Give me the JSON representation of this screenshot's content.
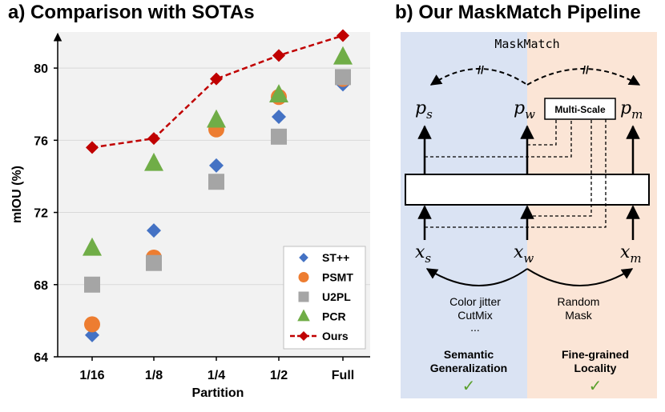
{
  "panel_a": {
    "title": "a)   Comparison with SOTAs"
  },
  "panel_b": {
    "title": "b)   Our MaskMatch Pipeline",
    "framework_label": "MaskMatch",
    "multiscale_label": "Multi-Scale",
    "outputs": [
      {
        "base": "p",
        "sub": "s"
      },
      {
        "base": "p",
        "sub": "w"
      },
      {
        "base": "p",
        "sub": "m"
      }
    ],
    "inputs": [
      {
        "base": "x",
        "sub": "s"
      },
      {
        "base": "x",
        "sub": "w"
      },
      {
        "base": "x",
        "sub": "m"
      }
    ],
    "break_mark": "//",
    "left_aug": [
      "Color jitter",
      "CutMix",
      "..."
    ],
    "right_aug": [
      "Random",
      "Mask"
    ],
    "left_property": [
      "Semantic",
      "Generalization"
    ],
    "right_property": [
      "Fine-grained",
      "Locality"
    ],
    "check_mark": "✓",
    "colors": {
      "left_bg": "#dae3f3",
      "right_bg": "#fbe5d6"
    }
  },
  "chart_data": {
    "type": "scatter",
    "title": "Comparison with SOTAs",
    "xlabel": "Partition",
    "ylabel": "mIOU (%)",
    "categories": [
      "1/16",
      "1/8",
      "1/4",
      "1/2",
      "Full"
    ],
    "ylim": [
      64,
      82
    ],
    "yticks": [
      64,
      68,
      72,
      76,
      80
    ],
    "grid": true,
    "legend_position": "bottom-right",
    "series": [
      {
        "name": "ST++",
        "marker": "diamond",
        "color": "#4472c4",
        "values": [
          65.2,
          71.0,
          74.6,
          77.3,
          79.1
        ]
      },
      {
        "name": "PSMT",
        "marker": "circle",
        "color": "#ed7d31",
        "values": [
          65.8,
          69.5,
          76.6,
          78.4,
          79.4
        ]
      },
      {
        "name": "U2PL",
        "marker": "square",
        "color": "#a5a5a5",
        "values": [
          68.0,
          69.2,
          73.7,
          76.2,
          79.5
        ]
      },
      {
        "name": "PCR",
        "marker": "triangle",
        "color": "#70ad47",
        "values": [
          70.0,
          74.7,
          77.1,
          78.5,
          80.6
        ]
      },
      {
        "name": "Ours",
        "marker": "diamond-line",
        "color": "#c00000",
        "values": [
          75.6,
          76.1,
          79.4,
          80.7,
          81.8
        ]
      }
    ]
  }
}
